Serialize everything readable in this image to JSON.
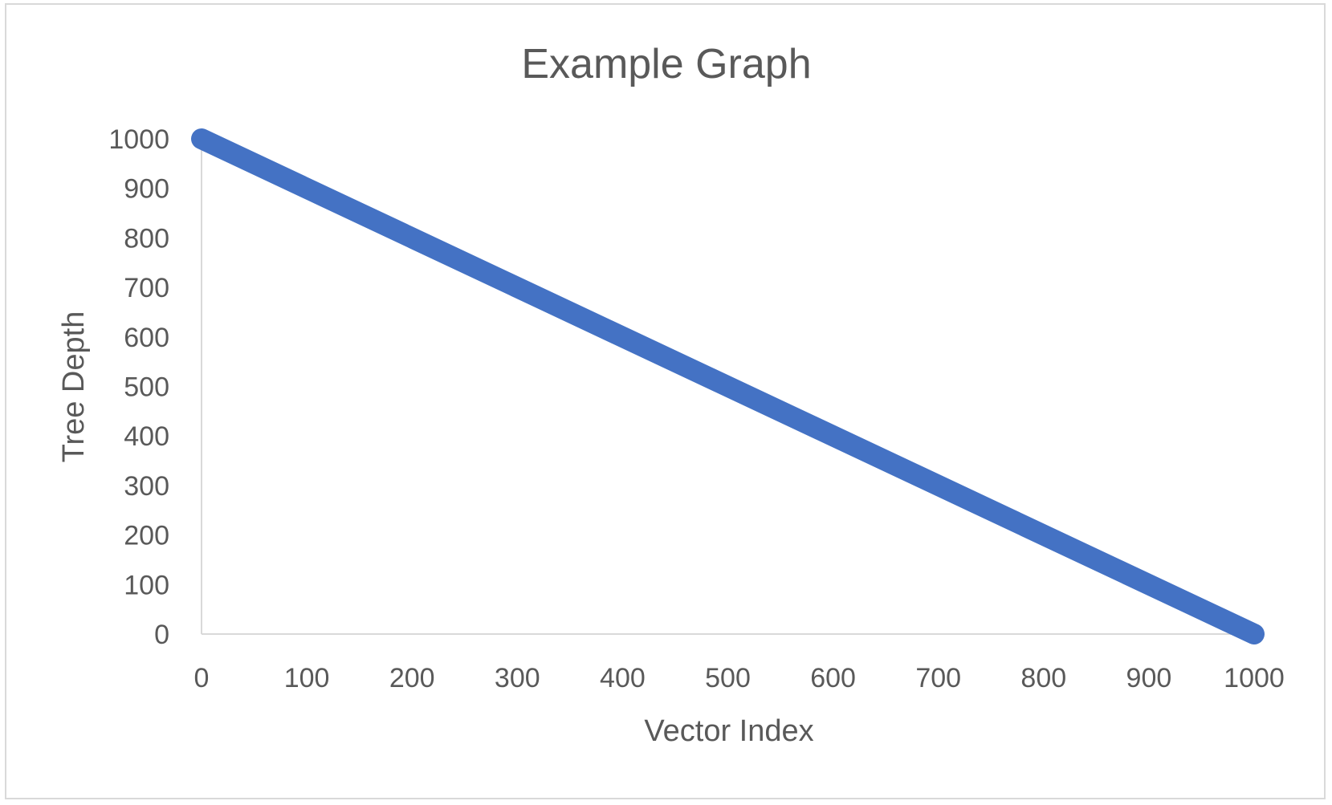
{
  "chart_data": {
    "type": "line",
    "title": "Example Graph",
    "xlabel": "Vector Index",
    "ylabel": "Tree Depth",
    "xlim": [
      0,
      1000
    ],
    "ylim": [
      0,
      1000
    ],
    "x_ticks": [
      "0",
      "100",
      "200",
      "300",
      "400",
      "500",
      "600",
      "700",
      "800",
      "900",
      "1000"
    ],
    "y_ticks": [
      "0",
      "100",
      "200",
      "300",
      "400",
      "500",
      "600",
      "700",
      "800",
      "900",
      "1000"
    ],
    "grid": false,
    "legend": "none",
    "series": [
      {
        "color": "#4472c4",
        "x": [
          0,
          1000
        ],
        "y": [
          1000,
          0
        ]
      }
    ]
  }
}
